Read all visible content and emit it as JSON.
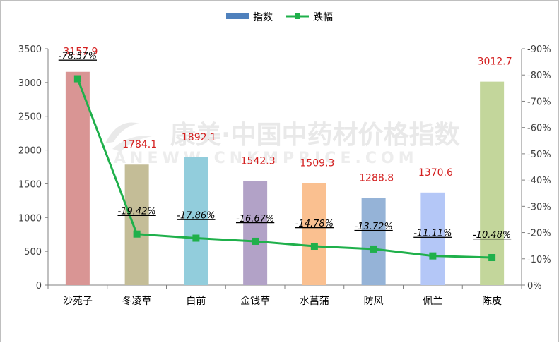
{
  "chart_data": {
    "type": "bar",
    "categories": [
      "沙苑子",
      "冬凌草",
      "白前",
      "金钱草",
      "水菖蒲",
      "防风",
      "佩兰",
      "陈皮"
    ],
    "series": [
      {
        "name": "指数",
        "type": "bar",
        "axis": "left",
        "values": [
          3157.9,
          1784.1,
          1892.1,
          1542.3,
          1509.3,
          1288.8,
          1370.6,
          3012.7
        ],
        "value_labels": [
          "3157.9",
          "1784.1",
          "1892.1",
          "1542.3",
          "1509.3",
          "1288.8",
          "1370.6",
          "3012.7"
        ],
        "colors": [
          "#d99594",
          "#c4bd97",
          "#92cddc",
          "#b2a2c7",
          "#fac090",
          "#95b3d7",
          "#b4c7f7",
          "#c3d69b"
        ]
      },
      {
        "name": "跌幅",
        "type": "line",
        "axis": "right",
        "values": [
          -78.57,
          -19.42,
          -17.86,
          -16.67,
          -14.78,
          -13.72,
          -11.11,
          -10.48
        ],
        "value_labels": [
          "-78.57%",
          "-19.42%",
          "-17.86%",
          "-16.67%",
          "-14.78%",
          "-13.72%",
          "-11.11%",
          "-10.48%"
        ],
        "color": "#1fb04b"
      }
    ],
    "y_left": {
      "min": 0,
      "max": 3500,
      "ticks": [
        "0",
        "500",
        "1000",
        "1500",
        "2000",
        "2500",
        "3000",
        "3500"
      ]
    },
    "y_right": {
      "min": 0,
      "max": -90,
      "ticks": [
        "0%",
        "-10%",
        "-20%",
        "-30%",
        "-40%",
        "-50%",
        "-60%",
        "-70%",
        "-80%",
        "-90%"
      ]
    },
    "legend": {
      "position": "top-center",
      "entries": [
        "指数",
        "跌幅"
      ]
    },
    "grid": false,
    "legend_bar_color": "#4f81bd",
    "watermark": {
      "line1": "康美·中国中药材价格指数",
      "line2": "ANEWW.CNKMPRICE.COM"
    }
  }
}
